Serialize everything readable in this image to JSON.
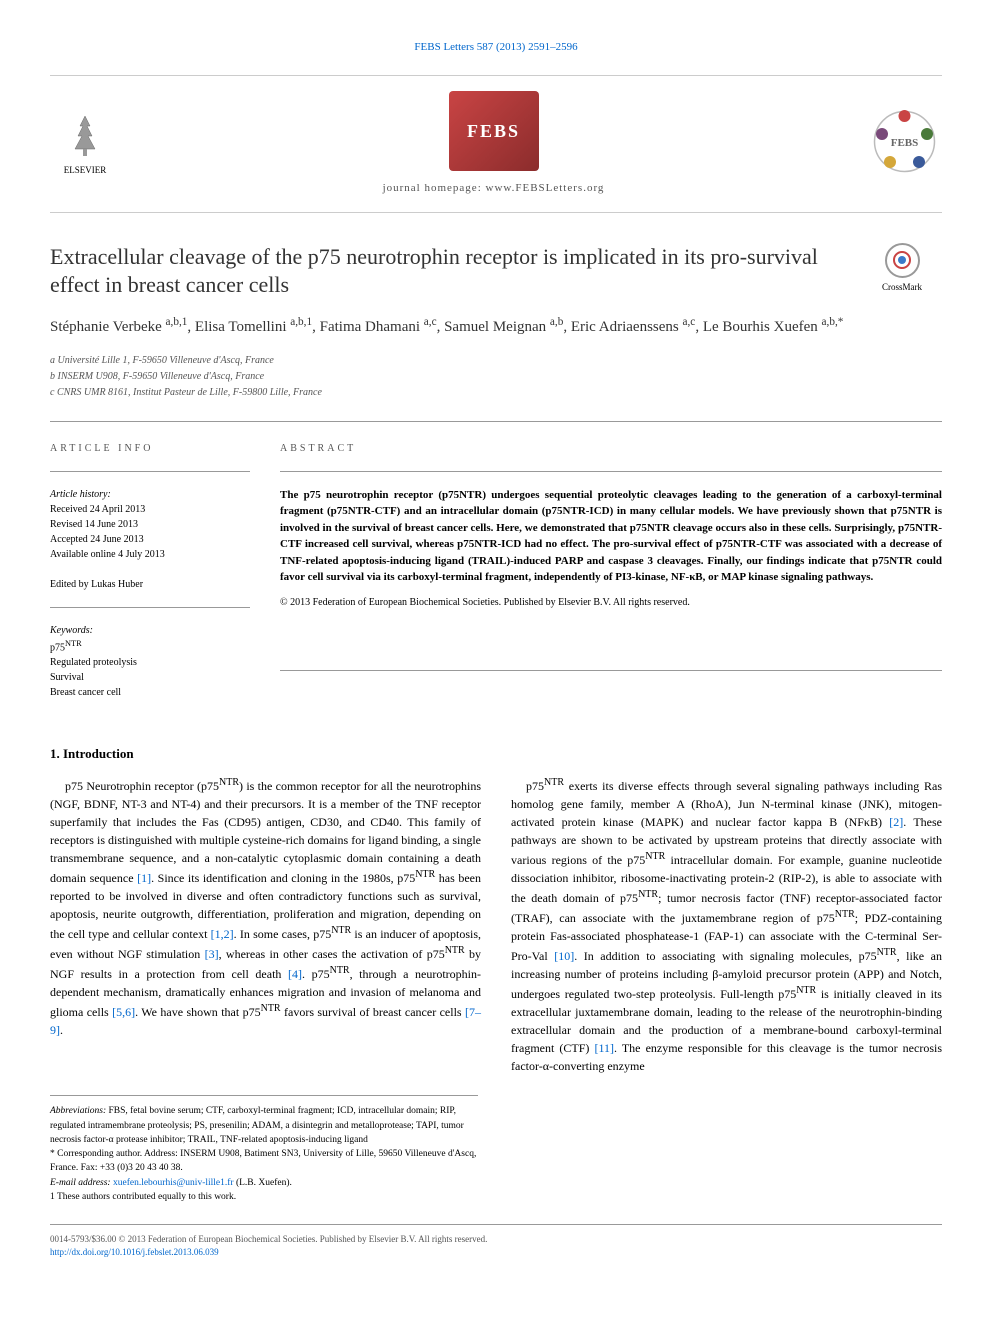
{
  "header": {
    "citation_link": "FEBS Letters 587 (2013) 2591–2596",
    "elsevier_label": "ELSEVIER",
    "febs_logo_text": "FEBS",
    "journal_homepage": "journal homepage: www.FEBSLetters.org",
    "crossmark_label": "CrossMark"
  },
  "article": {
    "title": "Extracellular cleavage of the p75 neurotrophin receptor is implicated in its pro-survival effect in breast cancer cells",
    "authors_html": "Stéphanie Verbeke <span class='sup'>a,b,1</span>, Elisa Tomellini <span class='sup'>a,b,1</span>, Fatima Dhamani <span class='sup'>a,c</span>, Samuel Meignan <span class='sup'>a,b</span>, Eric Adriaenssens <span class='sup'>a,c</span>, Le Bourhis Xuefen <span class='sup'>a,b,*</span>",
    "affiliations": [
      "a Université Lille 1, F-59650 Villeneuve d'Ascq, France",
      "b INSERM U908, F-59650 Villeneuve d'Ascq, France",
      "c CNRS UMR 8161, Institut Pasteur de Lille, F-59800 Lille, France"
    ]
  },
  "article_info": {
    "heading": "ARTICLE INFO",
    "history_label": "Article history:",
    "history": [
      "Received 24 April 2013",
      "Revised 14 June 2013",
      "Accepted 24 June 2013",
      "Available online 4 July 2013"
    ],
    "edited_by": "Edited by Lukas Huber",
    "keywords_label": "Keywords:",
    "keywords": [
      "p75NTR",
      "Regulated proteolysis",
      "Survival",
      "Breast cancer cell"
    ]
  },
  "abstract": {
    "heading": "ABSTRACT",
    "text": "The p75 neurotrophin receptor (p75NTR) undergoes sequential proteolytic cleavages leading to the generation of a carboxyl-terminal fragment (p75NTR-CTF) and an intracellular domain (p75NTR-ICD) in many cellular models. We have previously shown that p75NTR is involved in the survival of breast cancer cells. Here, we demonstrated that p75NTR cleavage occurs also in these cells. Surprisingly, p75NTR-CTF increased cell survival, whereas p75NTR-ICD had no effect. The pro-survival effect of p75NTR-CTF was associated with a decrease of TNF-related apoptosis-inducing ligand (TRAIL)-induced PARP and caspase 3 cleavages. Finally, our findings indicate that p75NTR could favor cell survival via its carboxyl-terminal fragment, independently of PI3-kinase, NF-κB, or MAP kinase signaling pathways.",
    "copyright": "© 2013 Federation of European Biochemical Societies. Published by Elsevier B.V. All rights reserved."
  },
  "body": {
    "section_heading": "1. Introduction",
    "paragraphs": [
      "p75 Neurotrophin receptor (p75NTR) is the common receptor for all the neurotrophins (NGF, BDNF, NT-3 and NT-4) and their precursors. It is a member of the TNF receptor superfamily that includes the Fas (CD95) antigen, CD30, and CD40. This family of receptors is distinguished with multiple cysteine-rich domains for ligand binding, a single transmembrane sequence, and a non-catalytic cytoplasmic domain containing a death domain sequence [1]. Since its identification and cloning in the 1980s, p75NTR has been reported to be involved in diverse and often contradictory functions such as survival, apoptosis, neurite outgrowth, differentiation, proliferation and migration, depending on the cell type and cellular context [1,2]. In some cases, p75NTR is an inducer of apoptosis, even without NGF stimulation [3], whereas in other cases the activation of p75NTR by NGF results in a protection from cell death [4]. p75NTR, through a neurotrophin-dependent mechanism, dramatically enhances migration and invasion of melanoma and glioma cells [5,6]. We have shown that p75NTR favors survival of breast cancer cells [7–9].",
      "p75NTR exerts its diverse effects through several signaling pathways including Ras homolog gene family, member A (RhoA), Jun N-terminal kinase (JNK), mitogen-activated protein kinase (MAPK) and nuclear factor kappa B (NFκB) [2]. These pathways are shown to be activated by upstream proteins that directly associate with various regions of the p75NTR intracellular domain. For example, guanine nucleotide dissociation inhibitor, ribosome-inactivating protein-2 (RIP-2), is able to associate with the death domain of p75NTR; tumor necrosis factor (TNF) receptor-associated factor (TRAF), can associate with the juxtamembrane region of p75NTR; PDZ-containing protein Fas-associated phosphatease-1 (FAP-1) can associate with the C-terminal Ser-Pro-Val [10]. In addition to associating with signaling molecules, p75NTR, like an increasing number of proteins including β-amyloid precursor protein (APP) and Notch, undergoes regulated two-step proteolysis. Full-length p75NTR is initially cleaved in its extracellular juxtamembrane domain, leading to the release of the neurotrophin-binding extracellular domain and the production of a membrane-bound carboxyl-terminal fragment (CTF) [11]. The enzyme responsible for this cleavage is the tumor necrosis factor-α-converting enzyme"
    ]
  },
  "footnotes": {
    "abbreviations_label": "Abbreviations:",
    "abbreviations": "FBS, fetal bovine serum; CTF, carboxyl-terminal fragment; ICD, intracellular domain; RIP, regulated intramembrane proteolysis; PS, presenilin; ADAM, a disintegrin and metalloprotease; TAPI, tumor necrosis factor-α protease inhibitor; TRAIL, TNF-related apoptosis-inducing ligand",
    "corresponding": "* Corresponding author. Address: INSERM U908, Batiment SN3, University of Lille, 59650 Villeneuve d'Ascq, France. Fax: +33 (0)3 20 43 40 38.",
    "email_label": "E-mail address:",
    "email": "xuefen.lebourhis@univ-lille1.fr",
    "email_suffix": "(L.B. Xuefen).",
    "equal_contrib": "1 These authors contributed equally to this work."
  },
  "footer": {
    "line1": "0014-5793/$36.00 © 2013 Federation of European Biochemical Societies. Published by Elsevier B.V. All rights reserved.",
    "doi": "http://dx.doi.org/10.1016/j.febslet.2013.06.039"
  },
  "colors": {
    "link": "#0066cc",
    "febs_red_start": "#c94444",
    "febs_red_end": "#8b2c2c",
    "text": "#000000",
    "muted": "#555555",
    "border": "#999999"
  }
}
